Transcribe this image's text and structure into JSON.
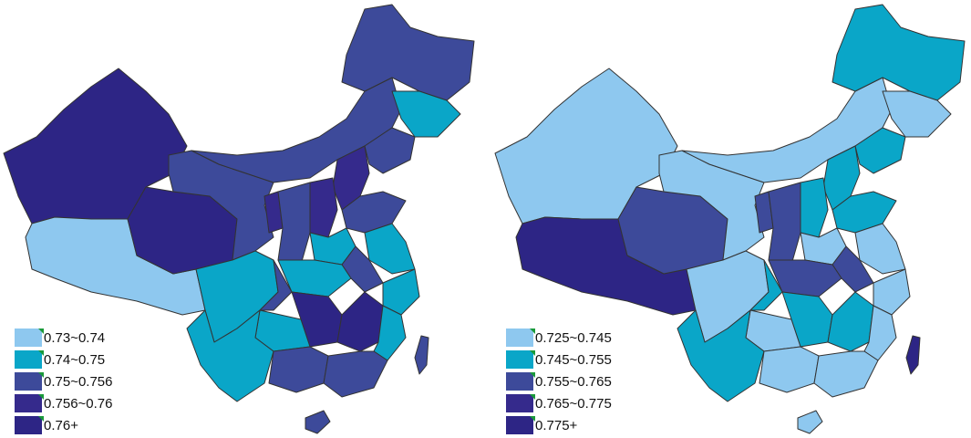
{
  "colors": {
    "c1": "#8ec8ef",
    "c2": "#0aa6c8",
    "c3": "#3d4a9a",
    "c4": "#352a8c",
    "c5": "#2d2585",
    "border": "#333333"
  },
  "maps": [
    {
      "legend": [
        {
          "label": "0.73~0.74",
          "color": "#8ec8ef"
        },
        {
          "label": "0.74~0.75",
          "color": "#0aa6c8"
        },
        {
          "label": "0.75~0.756",
          "color": "#3d4a9a"
        },
        {
          "label": "0.756~0.76",
          "color": "#352a8c"
        },
        {
          "label": "0.76+",
          "color": "#2d2585"
        }
      ]
    },
    {
      "legend": [
        {
          "label": "0.725~0.745",
          "color": "#8ec8ef"
        },
        {
          "label": "0.745~0.755",
          "color": "#0aa6c8"
        },
        {
          "label": "0.755~0.765",
          "color": "#3d4a9a"
        },
        {
          "label": "0.765~0.775",
          "color": "#352a8c"
        },
        {
          "label": "0.775+",
          "color": "#2d2585"
        }
      ]
    }
  ]
}
